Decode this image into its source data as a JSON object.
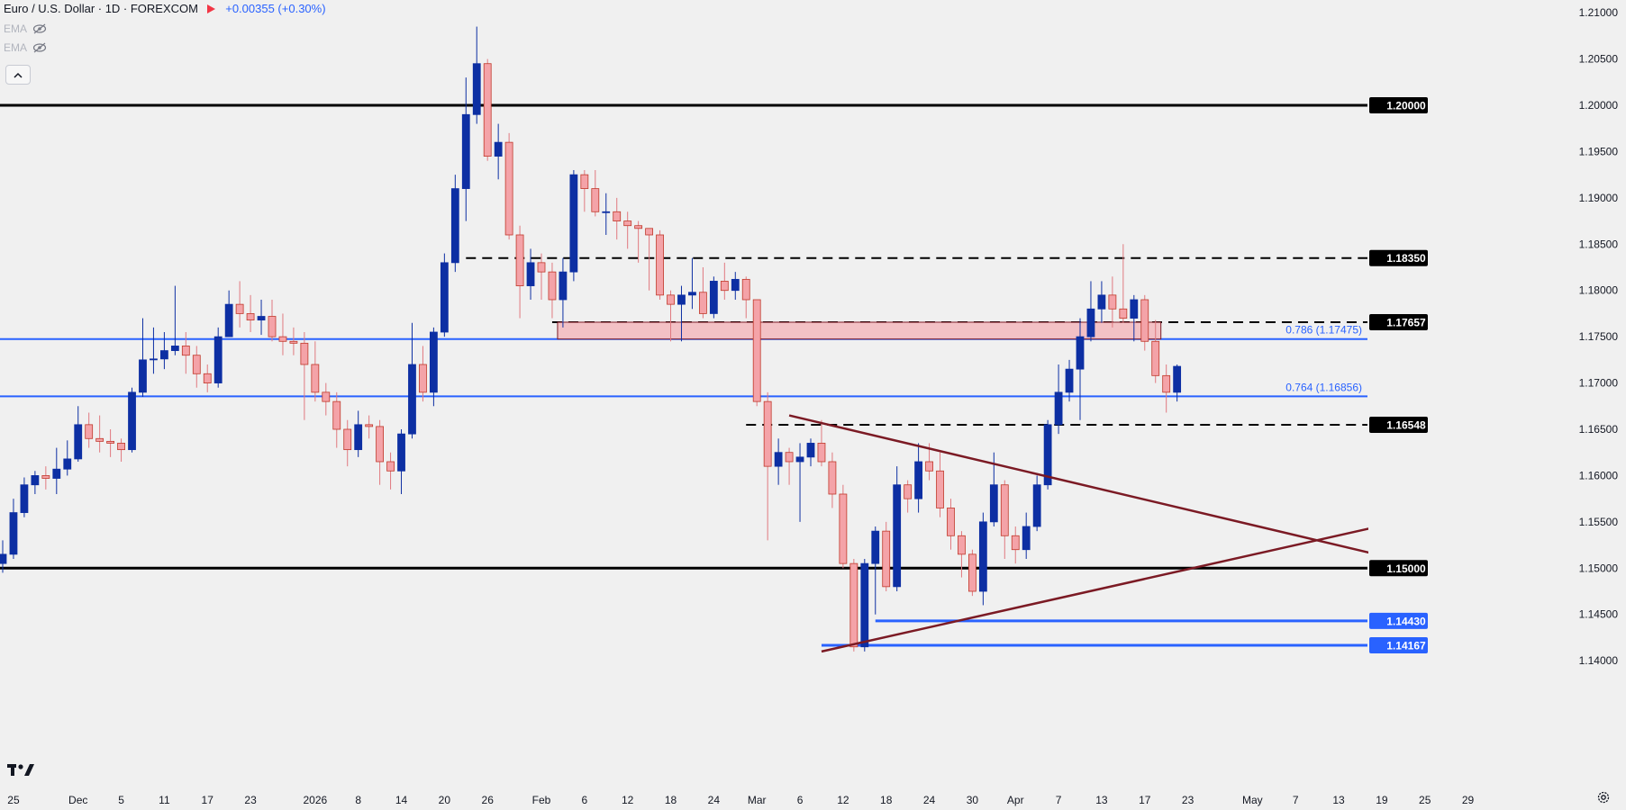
{
  "header": {
    "symbol_title": "Euro / U.S. Dollar · 1D · FOREXCOM",
    "change": "+0.00355 (+0.30%)",
    "indicators": [
      "EMA",
      "EMA"
    ]
  },
  "icons": {
    "eye": "eye-crossed-icon",
    "collapse": "chevron-up-icon",
    "logo": "tradingview-logo-icon",
    "settings": "gear-icon"
  },
  "colors": {
    "up": "#0d2fa3",
    "down": "#f4a3a8",
    "down_border": "#c0392b",
    "blue_line": "#2962ff",
    "trend": "#7b1a24",
    "zone": "#f3b8bd"
  },
  "chart_data": {
    "type": "candlestick",
    "title": "Euro / U.S. Dollar · 1D · FOREXCOM",
    "ylim": [
      1.1375,
      1.2105
    ],
    "y_ticks": [
      "1.14000",
      "1.14500",
      "1.15000",
      "1.15500",
      "1.16000",
      "1.16500",
      "1.17000",
      "1.17500",
      "1.18000",
      "1.18500",
      "1.19000",
      "1.19500",
      "1.20000",
      "1.20500",
      "1.21000"
    ],
    "x_labels": [
      {
        "t": 1,
        "label": "25"
      },
      {
        "t": 7,
        "label": "Dec"
      },
      {
        "t": 11,
        "label": "5"
      },
      {
        "t": 15,
        "label": "11"
      },
      {
        "t": 19,
        "label": "17"
      },
      {
        "t": 23,
        "label": "23"
      },
      {
        "t": 29,
        "label": "2026"
      },
      {
        "t": 33,
        "label": "8"
      },
      {
        "t": 37,
        "label": "14"
      },
      {
        "t": 41,
        "label": "20"
      },
      {
        "t": 45,
        "label": "26"
      },
      {
        "t": 50,
        "label": "Feb"
      },
      {
        "t": 54,
        "label": "6"
      },
      {
        "t": 58,
        "label": "12"
      },
      {
        "t": 62,
        "label": "18"
      },
      {
        "t": 66,
        "label": "24"
      },
      {
        "t": 70,
        "label": "Mar"
      },
      {
        "t": 74,
        "label": "6"
      },
      {
        "t": 78,
        "label": "12"
      },
      {
        "t": 82,
        "label": "18"
      },
      {
        "t": 86,
        "label": "24"
      },
      {
        "t": 90,
        "label": "30"
      },
      {
        "t": 94,
        "label": "Apr"
      },
      {
        "t": 98,
        "label": "7"
      },
      {
        "t": 102,
        "label": "13"
      },
      {
        "t": 106,
        "label": "17"
      },
      {
        "t": 110,
        "label": "23"
      },
      {
        "t": 116,
        "label": "May"
      },
      {
        "t": 120,
        "label": "7"
      },
      {
        "t": 124,
        "label": "13"
      },
      {
        "t": 128,
        "label": "19"
      },
      {
        "t": 132,
        "label": "25"
      },
      {
        "t": 136,
        "label": "29"
      }
    ],
    "candles": [
      [
        1.1505,
        1.1515,
        1.153,
        1.1495
      ],
      [
        1.1515,
        1.156,
        1.1575,
        1.151
      ],
      [
        1.156,
        1.159,
        1.1598,
        1.1555
      ],
      [
        1.159,
        1.16,
        1.1605,
        1.158
      ],
      [
        1.16,
        1.1597,
        1.161,
        1.1585
      ],
      [
        1.1597,
        1.1607,
        1.163,
        1.158
      ],
      [
        1.1607,
        1.1618,
        1.1638,
        1.16
      ],
      [
        1.1618,
        1.1655,
        1.1675,
        1.1615
      ],
      [
        1.1655,
        1.164,
        1.1668,
        1.163
      ],
      [
        1.164,
        1.1637,
        1.1665,
        1.1625
      ],
      [
        1.1637,
        1.1635,
        1.165,
        1.162
      ],
      [
        1.1635,
        1.1628,
        1.164,
        1.1615
      ],
      [
        1.1628,
        1.169,
        1.1695,
        1.1625
      ],
      [
        1.169,
        1.1725,
        1.177,
        1.1685
      ],
      [
        1.1725,
        1.1726,
        1.176,
        1.171
      ],
      [
        1.1726,
        1.1735,
        1.1755,
        1.1715
      ],
      [
        1.1735,
        1.174,
        1.1805,
        1.173
      ],
      [
        1.174,
        1.173,
        1.1755,
        1.171
      ],
      [
        1.173,
        1.171,
        1.174,
        1.1695
      ],
      [
        1.171,
        1.17,
        1.172,
        1.169
      ],
      [
        1.17,
        1.175,
        1.176,
        1.1695
      ],
      [
        1.175,
        1.1785,
        1.18,
        1.175
      ],
      [
        1.1785,
        1.1775,
        1.181,
        1.176
      ],
      [
        1.1775,
        1.1768,
        1.1795,
        1.1755
      ],
      [
        1.1768,
        1.1772,
        1.179,
        1.1752
      ],
      [
        1.1772,
        1.175,
        1.179,
        1.1745
      ],
      [
        1.175,
        1.1745,
        1.1775,
        1.173
      ],
      [
        1.1745,
        1.1743,
        1.176,
        1.173
      ],
      [
        1.1743,
        1.172,
        1.1755,
        1.166
      ],
      [
        1.172,
        1.169,
        1.1745,
        1.168
      ],
      [
        1.169,
        1.168,
        1.17,
        1.1665
      ],
      [
        1.168,
        1.165,
        1.169,
        1.163
      ],
      [
        1.165,
        1.1628,
        1.166,
        1.161
      ],
      [
        1.1628,
        1.1655,
        1.167,
        1.162
      ],
      [
        1.1655,
        1.1653,
        1.1665,
        1.164
      ],
      [
        1.1653,
        1.1615,
        1.166,
        1.159
      ],
      [
        1.1615,
        1.1605,
        1.1625,
        1.1585
      ],
      [
        1.1605,
        1.1645,
        1.165,
        1.158
      ],
      [
        1.1645,
        1.172,
        1.1765,
        1.164
      ],
      [
        1.172,
        1.169,
        1.174,
        1.168
      ],
      [
        1.169,
        1.1755,
        1.176,
        1.1675
      ],
      [
        1.1755,
        1.183,
        1.184,
        1.175
      ],
      [
        1.183,
        1.191,
        1.1925,
        1.182
      ],
      [
        1.191,
        1.199,
        1.203,
        1.1875
      ],
      [
        1.199,
        1.2045,
        1.2085,
        1.198
      ],
      [
        1.2045,
        1.1945,
        1.205,
        1.194
      ],
      [
        1.1945,
        1.196,
        1.198,
        1.192
      ],
      [
        1.196,
        1.186,
        1.197,
        1.1855
      ],
      [
        1.186,
        1.1805,
        1.187,
        1.177
      ],
      [
        1.1805,
        1.183,
        1.1845,
        1.179
      ],
      [
        1.183,
        1.182,
        1.184,
        1.179
      ],
      [
        1.182,
        1.179,
        1.183,
        1.177
      ],
      [
        1.179,
        1.182,
        1.1835,
        1.176
      ],
      [
        1.182,
        1.1925,
        1.193,
        1.181
      ],
      [
        1.1925,
        1.191,
        1.193,
        1.1885
      ],
      [
        1.191,
        1.1885,
        1.193,
        1.188
      ],
      [
        1.1885,
        1.1885,
        1.1905,
        1.186
      ],
      [
        1.1885,
        1.1875,
        1.19,
        1.1855
      ],
      [
        1.1875,
        1.187,
        1.1885,
        1.1845
      ],
      [
        1.187,
        1.1867,
        1.1875,
        1.183
      ],
      [
        1.1867,
        1.186,
        1.1865,
        1.18
      ],
      [
        1.186,
        1.1795,
        1.1865,
        1.179
      ],
      [
        1.1795,
        1.1785,
        1.18,
        1.1745
      ],
      [
        1.1785,
        1.1795,
        1.1805,
        1.1745
      ],
      [
        1.1795,
        1.1798,
        1.1835,
        1.178
      ],
      [
        1.1798,
        1.1775,
        1.1825,
        1.177
      ],
      [
        1.1775,
        1.181,
        1.1815,
        1.177
      ],
      [
        1.181,
        1.18,
        1.183,
        1.179
      ],
      [
        1.18,
        1.1812,
        1.182,
        1.179
      ],
      [
        1.1812,
        1.179,
        1.1815,
        1.177
      ],
      [
        1.179,
        1.168,
        1.179,
        1.1675
      ],
      [
        1.168,
        1.161,
        1.169,
        1.153
      ],
      [
        1.161,
        1.1625,
        1.164,
        1.159
      ],
      [
        1.1625,
        1.1615,
        1.163,
        1.159
      ],
      [
        1.1615,
        1.162,
        1.1635,
        1.155
      ],
      [
        1.162,
        1.1635,
        1.164,
        1.161
      ],
      [
        1.1635,
        1.1615,
        1.166,
        1.161
      ],
      [
        1.1615,
        1.158,
        1.1625,
        1.1565
      ],
      [
        1.158,
        1.1505,
        1.159,
        1.15
      ],
      [
        1.1505,
        1.1415,
        1.151,
        1.141
      ],
      [
        1.1415,
        1.1505,
        1.151,
        1.141
      ],
      [
        1.1505,
        1.154,
        1.1545,
        1.145
      ],
      [
        1.154,
        1.148,
        1.155,
        1.1475
      ],
      [
        1.148,
        1.159,
        1.161,
        1.1475
      ],
      [
        1.159,
        1.1575,
        1.1595,
        1.156
      ],
      [
        1.1575,
        1.1615,
        1.1635,
        1.156
      ],
      [
        1.1615,
        1.1605,
        1.1635,
        1.1595
      ],
      [
        1.1605,
        1.1565,
        1.1625,
        1.1555
      ],
      [
        1.1565,
        1.1535,
        1.1575,
        1.152
      ],
      [
        1.1535,
        1.1515,
        1.154,
        1.149
      ],
      [
        1.1515,
        1.1475,
        1.152,
        1.147
      ],
      [
        1.1475,
        1.155,
        1.156,
        1.146
      ],
      [
        1.155,
        1.159,
        1.1625,
        1.1545
      ],
      [
        1.159,
        1.1535,
        1.1595,
        1.151
      ],
      [
        1.1535,
        1.152,
        1.1545,
        1.1505
      ],
      [
        1.152,
        1.1545,
        1.156,
        1.151
      ],
      [
        1.1545,
        1.159,
        1.16,
        1.154
      ],
      [
        1.159,
        1.1655,
        1.166,
        1.1585
      ],
      [
        1.1655,
        1.169,
        1.172,
        1.1645
      ],
      [
        1.169,
        1.1715,
        1.1725,
        1.168
      ],
      [
        1.1715,
        1.175,
        1.177,
        1.166
      ],
      [
        1.175,
        1.178,
        1.181,
        1.1745
      ],
      [
        1.178,
        1.1795,
        1.181,
        1.1765
      ],
      [
        1.1795,
        1.178,
        1.1815,
        1.176
      ],
      [
        1.178,
        1.177,
        1.185,
        1.1765
      ],
      [
        1.177,
        1.179,
        1.1795,
        1.1745
      ],
      [
        1.179,
        1.1745,
        1.1795,
        1.1735
      ],
      [
        1.1745,
        1.1708,
        1.1768,
        1.17
      ],
      [
        1.1708,
        1.169,
        1.172,
        1.1668
      ],
      [
        1.169,
        1.1718,
        1.172,
        1.168
      ]
    ],
    "horizontal_levels": [
      {
        "price": 1.2,
        "label": "1.20000",
        "style": "solid",
        "color": "#000000",
        "width": 3,
        "from_t": -1
      },
      {
        "price": 1.1835,
        "label": "1.18350",
        "style": "dashed",
        "color": "#000000",
        "width": 2,
        "from_t": 43
      },
      {
        "price": 1.17657,
        "label": "1.17657",
        "style": "dashed",
        "color": "#000000",
        "width": 2,
        "from_t": 51
      },
      {
        "price": 1.16548,
        "label": "1.16548",
        "style": "dashed",
        "color": "#000000",
        "width": 2,
        "from_t": 69
      },
      {
        "price": 1.15,
        "label": "1.15000",
        "style": "solid",
        "color": "#000000",
        "width": 3,
        "from_t": -1
      },
      {
        "price": 1.1443,
        "label": "1.14430",
        "style": "solid",
        "color": "#2962ff",
        "width": 3,
        "from_t": 81
      },
      {
        "price": 1.14167,
        "label": "1.14167",
        "style": "solid",
        "color": "#2962ff",
        "width": 3,
        "from_t": 76
      }
    ],
    "fib_levels": [
      {
        "price": 1.17475,
        "label": "0.786 (1.17475)"
      },
      {
        "price": 1.16856,
        "label": "0.764 (1.16856)"
      }
    ],
    "zone": {
      "price_low": 1.17475,
      "price_high": 1.17657,
      "t_start": 51.5,
      "t_end": 107.5
    },
    "trendlines": [
      {
        "t1": 73,
        "p1": 1.1665,
        "t2": 138,
        "p2": 1.1486
      },
      {
        "t1": 76,
        "p1": 1.141,
        "t2": 138,
        "p2": 1.1572
      }
    ]
  }
}
